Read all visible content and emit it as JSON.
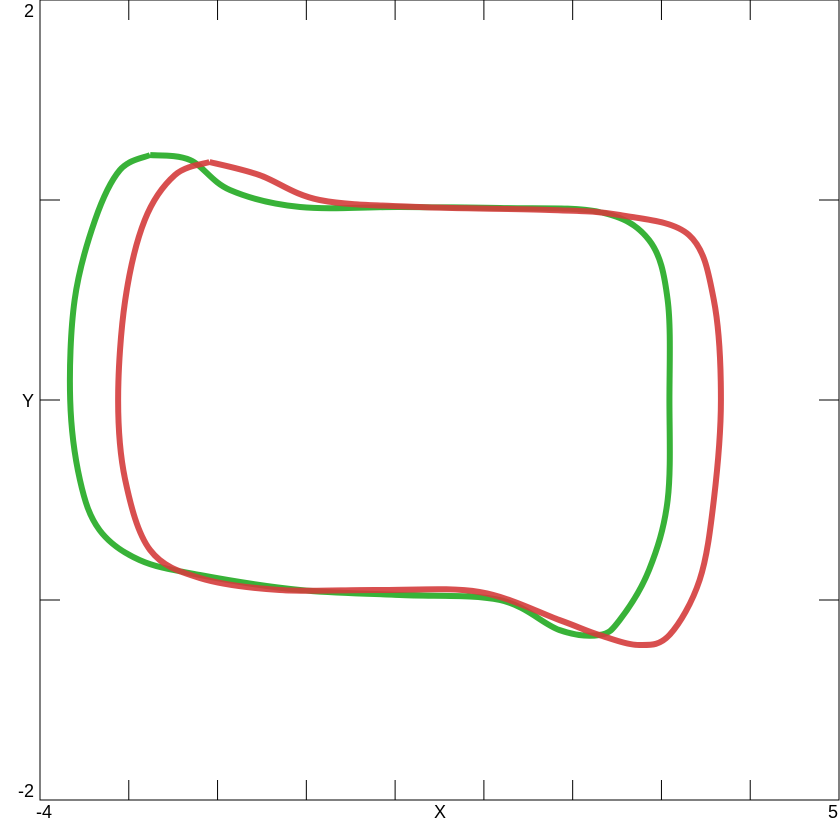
{
  "chart_data": {
    "type": "line",
    "x_label": "X",
    "y_label": "Y",
    "xlim": [
      -4,
      5
    ],
    "ylim": [
      -2,
      2
    ],
    "xticks": [
      -4,
      5
    ],
    "yticks": [
      -2,
      2
    ],
    "xticks_minor": [
      -3,
      -2,
      -1,
      0,
      1,
      2,
      3,
      4
    ],
    "yticks_minor": [
      -1,
      0,
      1
    ],
    "series": [
      {
        "color": "#22aa22",
        "x": [
          -2.76,
          -2.31,
          -1.86,
          -1.07,
          0.05,
          1.18,
          2.3,
          2.86,
          3.07,
          3.09,
          3.07,
          2.86,
          2.53,
          2.3,
          1.85,
          1.18,
          0.05,
          -1.07,
          -2.2,
          -2.88,
          -3.33,
          -3.55,
          -3.66,
          -3.61,
          -3.38,
          -3.1,
          -2.76
        ],
        "values": [
          1.225,
          1.2,
          1.05,
          0.965,
          0.965,
          0.96,
          0.94,
          0.8,
          0.5,
          0.0,
          -0.5,
          -0.85,
          -1.1,
          -1.175,
          -1.15,
          -1.0,
          -0.975,
          -0.95,
          -0.875,
          -0.8,
          -0.65,
          -0.4,
          0.0,
          0.5,
          0.9,
          1.15,
          1.225
        ]
      },
      {
        "color": "#d43c3c",
        "x": [
          -2.09,
          -1.53,
          -0.85,
          0.275,
          1.74,
          2.53,
          3.31,
          3.59,
          3.67,
          3.59,
          3.43,
          3.09,
          2.75,
          2.3,
          1.85,
          0.95,
          -0.175,
          -1.3,
          -2.2,
          -2.76,
          -3.04,
          -3.12,
          -3.04,
          -2.82,
          -2.48,
          -2.09
        ],
        "values": [
          1.19,
          1.125,
          1.0,
          0.965,
          0.95,
          0.925,
          0.825,
          0.5,
          0.0,
          -0.5,
          -0.9,
          -1.175,
          -1.225,
          -1.175,
          -1.1,
          -0.96,
          -0.95,
          -0.95,
          -0.89,
          -0.75,
          -0.4,
          0.0,
          0.5,
          0.9,
          1.125,
          1.19
        ]
      }
    ]
  }
}
